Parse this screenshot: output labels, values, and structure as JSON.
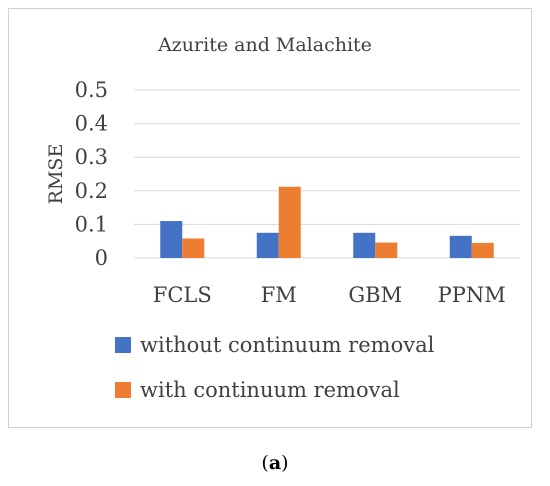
{
  "chart_data": {
    "type": "bar",
    "title": "Azurite and Malachite",
    "ylabel": "RMSE",
    "xlabel": "",
    "categories": [
      "FCLS",
      "FM",
      "GBM",
      "PPNM"
    ],
    "series": [
      {
        "name": "without continuum removal",
        "values": [
          0.11,
          0.075,
          0.075,
          0.066
        ],
        "color": "#4472C4"
      },
      {
        "name": "with continuum removal",
        "values": [
          0.058,
          0.212,
          0.046,
          0.045
        ],
        "color": "#ED7D31"
      }
    ],
    "ylim": [
      0,
      0.5
    ],
    "yticks": [
      "0",
      "0.1",
      "0.2",
      "0.3",
      "0.4",
      "0.5"
    ],
    "grid": true,
    "legend_position": "bottom"
  },
  "caption": {
    "open": "(",
    "letter": "a",
    "close": ")"
  }
}
